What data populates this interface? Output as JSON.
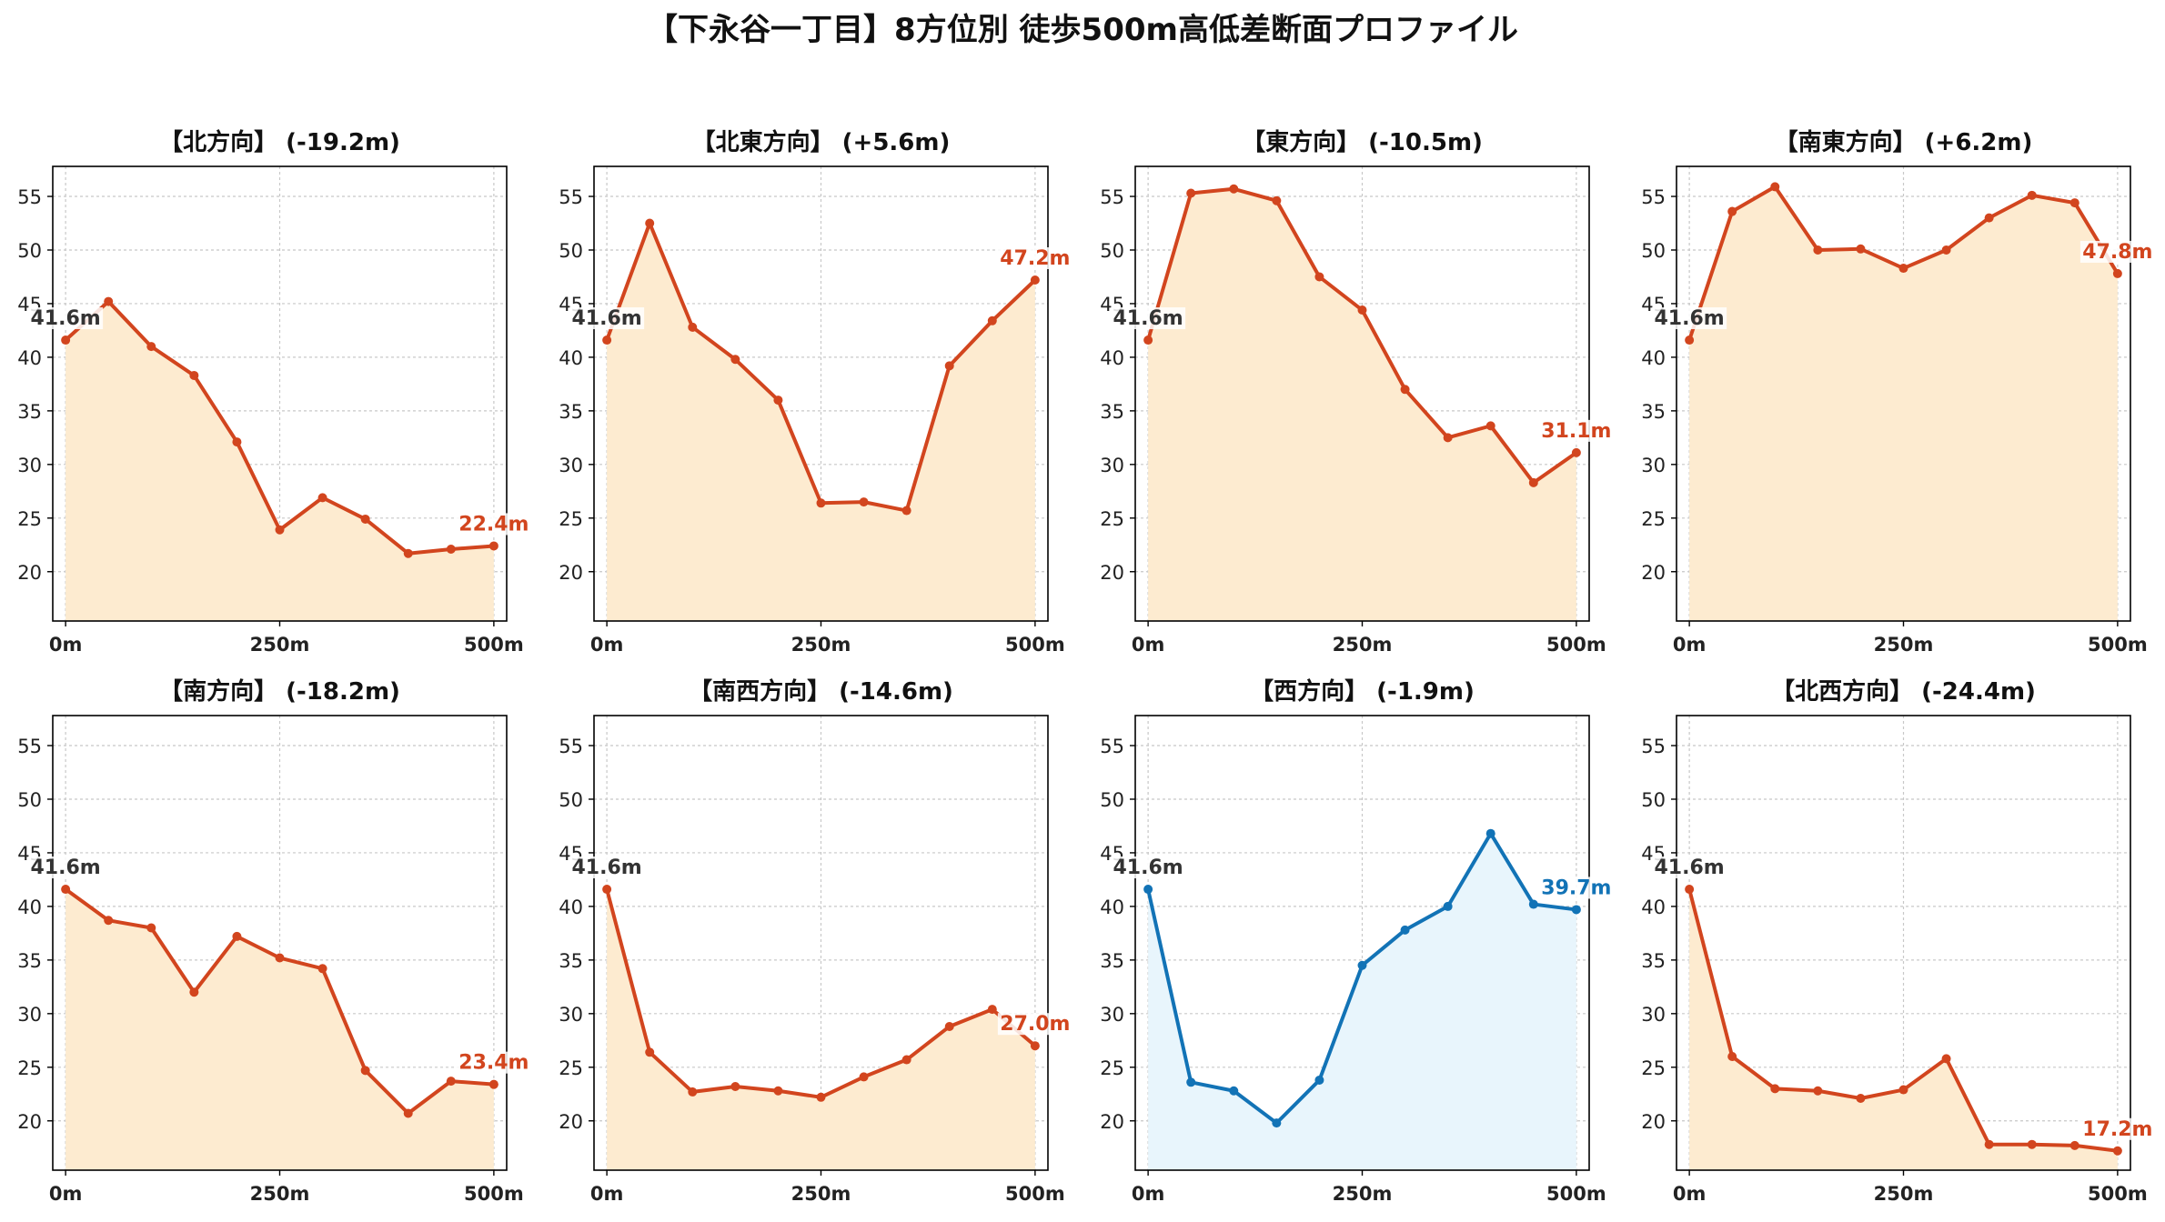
{
  "suptitle": "【下永谷一丁目】8方位別 徒歩500m高低差断面プロファイル",
  "colors": {
    "down_line": "#d2451e",
    "down_fill": "#fdebd0",
    "up_line": "#1273b6",
    "up_fill": "#e8f5fc",
    "start_label": "#333333",
    "grid": "#c8c8c8"
  },
  "chart_data": [
    {
      "type": "area",
      "title": "【北方向】 (-19.2m)",
      "x": [
        0,
        50,
        100,
        150,
        200,
        250,
        300,
        350,
        400,
        450,
        500
      ],
      "values": [
        41.6,
        45.2,
        41.0,
        38.3,
        32.1,
        23.9,
        26.9,
        24.9,
        21.7,
        22.1,
        22.4
      ],
      "start_label": "41.6m",
      "end_label": "22.4m",
      "trend": "down",
      "xticks": [
        "0m",
        "250m",
        "500m"
      ],
      "yticks": [
        20,
        25,
        30,
        35,
        40,
        45,
        50,
        55
      ],
      "xlim": [
        -15,
        515
      ],
      "ylim": [
        15.4,
        57.8
      ],
      "grid": true
    },
    {
      "type": "area",
      "title": "【北東方向】 (+5.6m)",
      "x": [
        0,
        50,
        100,
        150,
        200,
        250,
        300,
        350,
        400,
        450,
        500
      ],
      "values": [
        41.6,
        52.5,
        42.8,
        39.8,
        36.0,
        26.4,
        26.5,
        25.7,
        39.2,
        43.4,
        47.2
      ],
      "start_label": "41.6m",
      "end_label": "47.2m",
      "trend": "down",
      "xticks": [
        "0m",
        "250m",
        "500m"
      ],
      "yticks": [
        20,
        25,
        30,
        35,
        40,
        45,
        50,
        55
      ],
      "xlim": [
        -15,
        515
      ],
      "ylim": [
        15.4,
        57.8
      ],
      "grid": true
    },
    {
      "type": "area",
      "title": "【東方向】 (-10.5m)",
      "x": [
        0,
        50,
        100,
        150,
        200,
        250,
        300,
        350,
        400,
        450,
        500
      ],
      "values": [
        41.6,
        55.3,
        55.7,
        54.6,
        47.5,
        44.4,
        37.0,
        32.5,
        33.6,
        28.3,
        31.1
      ],
      "start_label": "41.6m",
      "end_label": "31.1m",
      "trend": "down",
      "xticks": [
        "0m",
        "250m",
        "500m"
      ],
      "yticks": [
        20,
        25,
        30,
        35,
        40,
        45,
        50,
        55
      ],
      "xlim": [
        -15,
        515
      ],
      "ylim": [
        15.4,
        57.8
      ],
      "grid": true
    },
    {
      "type": "area",
      "title": "【南東方向】 (+6.2m)",
      "x": [
        0,
        50,
        100,
        150,
        200,
        250,
        300,
        350,
        400,
        450,
        500
      ],
      "values": [
        41.6,
        53.6,
        55.9,
        50.0,
        50.1,
        48.3,
        50.0,
        53.0,
        55.1,
        54.4,
        47.8
      ],
      "start_label": "41.6m",
      "end_label": "47.8m",
      "trend": "down",
      "xticks": [
        "0m",
        "250m",
        "500m"
      ],
      "yticks": [
        20,
        25,
        30,
        35,
        40,
        45,
        50,
        55
      ],
      "xlim": [
        -15,
        515
      ],
      "ylim": [
        15.4,
        57.8
      ],
      "grid": true
    },
    {
      "type": "area",
      "title": "【南方向】 (-18.2m)",
      "x": [
        0,
        50,
        100,
        150,
        200,
        250,
        300,
        350,
        400,
        450,
        500
      ],
      "values": [
        41.6,
        38.7,
        38.0,
        32.0,
        37.2,
        35.2,
        34.2,
        24.7,
        20.7,
        23.7,
        23.4
      ],
      "start_label": "41.6m",
      "end_label": "23.4m",
      "trend": "down",
      "xticks": [
        "0m",
        "250m",
        "500m"
      ],
      "yticks": [
        20,
        25,
        30,
        35,
        40,
        45,
        50,
        55
      ],
      "xlim": [
        -15,
        515
      ],
      "ylim": [
        15.4,
        57.8
      ],
      "grid": true
    },
    {
      "type": "area",
      "title": "【南西方向】 (-14.6m)",
      "x": [
        0,
        50,
        100,
        150,
        200,
        250,
        300,
        350,
        400,
        450,
        500
      ],
      "values": [
        41.6,
        26.4,
        22.7,
        23.2,
        22.8,
        22.2,
        24.1,
        25.7,
        28.8,
        30.4,
        27.0
      ],
      "start_label": "41.6m",
      "end_label": "27.0m",
      "trend": "down",
      "xticks": [
        "0m",
        "250m",
        "500m"
      ],
      "yticks": [
        20,
        25,
        30,
        35,
        40,
        45,
        50,
        55
      ],
      "xlim": [
        -15,
        515
      ],
      "ylim": [
        15.4,
        57.8
      ],
      "grid": true
    },
    {
      "type": "area",
      "title": "【西方向】 (-1.9m)",
      "x": [
        0,
        50,
        100,
        150,
        200,
        250,
        300,
        350,
        400,
        450,
        500
      ],
      "values": [
        41.6,
        23.6,
        22.8,
        19.8,
        23.8,
        34.5,
        37.8,
        40.0,
        46.8,
        40.2,
        39.7
      ],
      "start_label": "41.6m",
      "end_label": "39.7m",
      "trend": "up",
      "xticks": [
        "0m",
        "250m",
        "500m"
      ],
      "yticks": [
        20,
        25,
        30,
        35,
        40,
        45,
        50,
        55
      ],
      "xlim": [
        -15,
        515
      ],
      "ylim": [
        15.4,
        57.8
      ],
      "grid": true
    },
    {
      "type": "area",
      "title": "【北西方向】 (-24.4m)",
      "x": [
        0,
        50,
        100,
        150,
        200,
        250,
        300,
        350,
        400,
        450,
        500
      ],
      "values": [
        41.6,
        26.0,
        23.0,
        22.8,
        22.1,
        22.9,
        25.8,
        17.8,
        17.8,
        17.7,
        17.2
      ],
      "start_label": "41.6m",
      "end_label": "17.2m",
      "trend": "down",
      "xticks": [
        "0m",
        "250m",
        "500m"
      ],
      "yticks": [
        20,
        25,
        30,
        35,
        40,
        45,
        50,
        55
      ],
      "xlim": [
        -15,
        515
      ],
      "ylim": [
        15.4,
        57.8
      ],
      "grid": true
    }
  ]
}
